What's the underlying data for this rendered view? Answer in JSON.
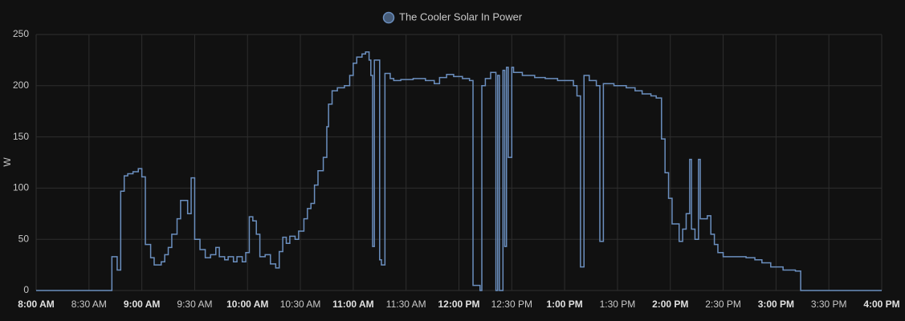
{
  "chart_data": {
    "type": "line",
    "step": true,
    "series": [
      {
        "name": "The Cooler Solar In Power",
        "color": "#6b8fbf",
        "x": [
          "8:00 AM",
          "8:43 AM",
          "8:46 AM",
          "8:48 AM",
          "8:50 AM",
          "8:52 AM",
          "8:55 AM",
          "8:58 AM",
          "9:00 AM",
          "9:02 AM",
          "9:05 AM",
          "9:07 AM",
          "9:11 AM",
          "9:13 AM",
          "9:15 AM",
          "9:17 AM",
          "9:20 AM",
          "9:22 AM",
          "9:26 AM",
          "9:28 AM",
          "9:30 AM",
          "9:33 AM",
          "9:36 AM",
          "9:39 AM",
          "9:42 AM",
          "9:44 AM",
          "9:47 AM",
          "9:49 AM",
          "9:52 AM",
          "9:54 AM",
          "9:57 AM",
          "9:59 AM",
          "10:01 AM",
          "10:03 AM",
          "10:05 AM",
          "10:07 AM",
          "10:10 AM",
          "10:13 AM",
          "10:16 AM",
          "10:18 AM",
          "10:20 AM",
          "10:22 AM",
          "10:24 AM",
          "10:27 AM",
          "10:29 AM",
          "10:32 AM",
          "10:34 AM",
          "10:36 AM",
          "10:38 AM",
          "10:40 AM",
          "10:43 AM",
          "10:45 AM",
          "10:46 AM",
          "10:48 AM",
          "10:51 AM",
          "10:55 AM",
          "10:58 AM",
          "11:00 AM",
          "11:02 AM",
          "11:05 AM",
          "11:07 AM",
          "11:09 AM",
          "11:10 AM",
          "11:11 AM",
          "11:12 AM",
          "11:15 AM",
          "11:16 AM",
          "11:18 AM",
          "11:21 AM",
          "11:23 AM",
          "11:27 AM",
          "11:34 AM",
          "11:41 AM",
          "11:46 AM",
          "11:49 AM",
          "11:53 AM",
          "11:57 AM",
          "12:02 PM",
          "12:06 PM",
          "12:08 PM",
          "12:12 PM",
          "12:13 PM",
          "12:15 PM",
          "12:18 PM",
          "12:21 PM",
          "12:22 PM",
          "12:23 PM",
          "12:25 PM",
          "12:26 PM",
          "12:27 PM",
          "12:28 PM",
          "12:30 PM",
          "12:31 PM",
          "12:36 PM",
          "12:43 PM",
          "12:49 PM",
          "12:56 PM",
          "1:01 PM",
          "1:05 PM",
          "1:07 PM",
          "1:09 PM",
          "1:11 PM",
          "1:14 PM",
          "1:18 PM",
          "1:20 PM",
          "1:22 PM",
          "1:28 PM",
          "1:35 PM",
          "1:40 PM",
          "1:44 PM",
          "1:49 PM",
          "1:52 PM",
          "1:55 PM",
          "1:57 PM",
          "1:59 PM",
          "2:01 PM",
          "2:05 PM",
          "2:07 PM",
          "2:09 PM",
          "2:11 PM",
          "2:12 PM",
          "2:14 PM",
          "2:16 PM",
          "2:17 PM",
          "2:21 PM",
          "2:23 PM",
          "2:25 PM",
          "2:27 PM",
          "2:30 PM",
          "2:37 PM",
          "2:43 PM",
          "2:48 PM",
          "2:52 PM",
          "2:57 PM",
          "3:04 PM",
          "3:11 PM",
          "3:14 PM",
          "4:00 PM"
        ],
        "values": [
          0,
          33,
          20,
          97,
          112,
          114,
          116,
          119,
          111,
          45,
          32,
          25,
          28,
          35,
          42,
          55,
          70,
          88,
          75,
          110,
          50,
          40,
          32,
          35,
          42,
          33,
          30,
          33,
          28,
          33,
          28,
          37,
          72,
          68,
          55,
          33,
          35,
          26,
          22,
          38,
          52,
          46,
          53,
          50,
          58,
          70,
          80,
          85,
          103,
          117,
          130,
          160,
          182,
          195,
          198,
          200,
          210,
          222,
          228,
          231,
          233,
          225,
          210,
          43,
          225,
          30,
          25,
          212,
          207,
          205,
          206,
          207,
          205,
          202,
          208,
          211,
          209,
          207,
          205,
          5,
          0,
          200,
          207,
          213,
          0,
          210,
          0,
          215,
          43,
          218,
          130,
          218,
          213,
          210,
          208,
          207,
          205,
          205,
          200,
          190,
          23,
          210,
          205,
          200,
          48,
          202,
          200,
          198,
          195,
          192,
          190,
          188,
          148,
          115,
          90,
          65,
          48,
          60,
          75,
          128,
          60,
          50,
          128,
          70,
          73,
          55,
          45,
          37,
          33,
          33,
          32,
          30,
          27,
          23,
          20,
          19,
          0,
          0
        ]
      }
    ],
    "y_label": "W",
    "xlim": [
      "8:00 AM",
      "4:00 PM"
    ],
    "xticks": [
      "8:00 AM",
      "8:30 AM",
      "9:00 AM",
      "9:30 AM",
      "10:00 AM",
      "10:30 AM",
      "11:00 AM",
      "11:30 AM",
      "12:00 PM",
      "12:30 PM",
      "1:00 PM",
      "1:30 PM",
      "2:00 PM",
      "2:30 PM",
      "3:00 PM",
      "3:30 PM",
      "4:00 PM"
    ],
    "ylim": [
      0,
      250
    ],
    "yticks": [
      0,
      50,
      100,
      150,
      200,
      250
    ],
    "grid": true,
    "legend": "top"
  }
}
